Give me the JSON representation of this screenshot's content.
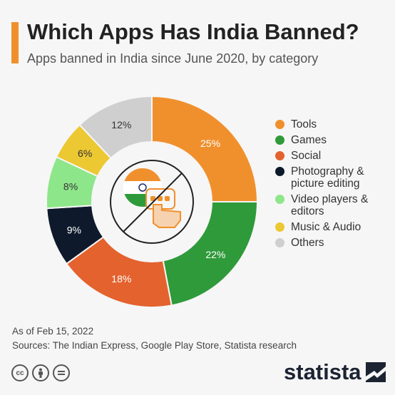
{
  "header": {
    "title": "Which Apps Has India Banned?",
    "subtitle": "Apps banned in India since June 2020, by category"
  },
  "chart_data": {
    "type": "pie",
    "donut": true,
    "title": "Which Apps Has India Banned?",
    "subtitle": "Apps banned in India since June 2020, by category",
    "categories": [
      "Tools",
      "Games",
      "Social",
      "Photography & picture editing",
      "Video players & editors",
      "Music & Audio",
      "Others"
    ],
    "values": [
      25,
      22,
      18,
      9,
      8,
      6,
      12
    ],
    "labels": [
      "25%",
      "22%",
      "18%",
      "9%",
      "8%",
      "6%",
      "12%"
    ],
    "colors": [
      "#f0902c",
      "#2f9a3a",
      "#e4622e",
      "#0e1a2b",
      "#8ee68a",
      "#ecc832",
      "#cfcfcf"
    ],
    "legend_position": "right"
  },
  "legend": [
    {
      "label": "Tools",
      "color": "#f0902c"
    },
    {
      "label": "Games",
      "color": "#2f9a3a"
    },
    {
      "label": "Social",
      "color": "#e4622e"
    },
    {
      "label": "Photography & picture editing",
      "color": "#0e1a2b"
    },
    {
      "label": "Video players & editors",
      "color": "#8ee68a"
    },
    {
      "label": "Music & Audio",
      "color": "#ecc832"
    },
    {
      "label": "Others",
      "color": "#cfcfcf"
    }
  ],
  "footer": {
    "date": "As of Feb 15, 2022",
    "sources": "Sources: The Indian Express, Google Play Store, Statista research",
    "cc_icons": [
      "cc-icon",
      "attribution-icon",
      "no-derivatives-icon"
    ],
    "brand": "statista"
  }
}
